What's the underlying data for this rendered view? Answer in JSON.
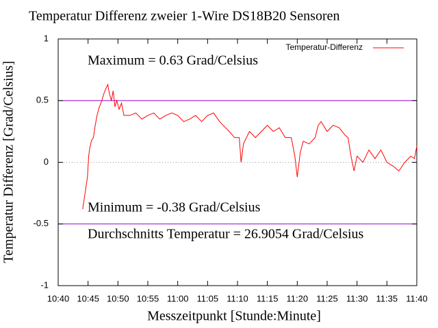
{
  "chart_data": {
    "type": "line",
    "title": "Temperatur Differenz zweier 1-Wire DS18B20 Sensoren",
    "x_label": "Messzeitpunkt [Stunde:Minute]",
    "y_label": "Temperatur Differenz [Grad/Celsius]",
    "annotations": [
      "Maximum = 0.63 Grad/Celsius",
      "Minimum = -0.38 Grad/Celsius",
      "Durchschnitts Temperatur = 26.9054 Grad/Celsius"
    ],
    "xlim": [
      640,
      700
    ],
    "xticks": [
      {
        "value": 640,
        "label": "10:40"
      },
      {
        "value": 645,
        "label": "10:45"
      },
      {
        "value": 650,
        "label": "10:50"
      },
      {
        "value": 655,
        "label": "10:55"
      },
      {
        "value": 660,
        "label": "11:00"
      },
      {
        "value": 665,
        "label": "11:05"
      },
      {
        "value": 670,
        "label": "11:10"
      },
      {
        "value": 675,
        "label": "11:15"
      },
      {
        "value": 680,
        "label": "11:20"
      },
      {
        "value": 685,
        "label": "11:25"
      },
      {
        "value": 690,
        "label": "11:30"
      },
      {
        "value": 695,
        "label": "11:35"
      },
      {
        "value": 700,
        "label": "11:40"
      }
    ],
    "ylim": [
      -1,
      1
    ],
    "yticks": [
      1,
      0.5,
      0,
      -0.5,
      -1
    ],
    "hlines": [
      0.5,
      -0.5
    ],
    "hline_color": "#9400d3",
    "zero_line": true,
    "legend": "upper right",
    "x": [
      644.1,
      644.5,
      644.9,
      645.1,
      645.3,
      645.6,
      645.9,
      646.2,
      646.5,
      646.9,
      647.3,
      647.6,
      648.0,
      648.3,
      648.6,
      648.9,
      649.2,
      649.5,
      649.8,
      650.2,
      650.6,
      651.0,
      652,
      653,
      654,
      655,
      656,
      657,
      658,
      659,
      660,
      661,
      662,
      663,
      664,
      665,
      666,
      667,
      668,
      669,
      669.5,
      670.3,
      670.6,
      671,
      672,
      673,
      674,
      675,
      676,
      677,
      678,
      679,
      679.6,
      680,
      680.5,
      681,
      682,
      683,
      683.5,
      684,
      685,
      686,
      687,
      688,
      688.5,
      689,
      689.5,
      690,
      691,
      692,
      693,
      694,
      695,
      696,
      697,
      698,
      699,
      699.6,
      700
    ],
    "series": [
      {
        "name": "Temperatur-Differenz",
        "color": "#ff0000",
        "values": [
          -0.38,
          -0.25,
          -0.12,
          0.05,
          0.12,
          0.18,
          0.2,
          0.3,
          0.38,
          0.45,
          0.5,
          0.55,
          0.6,
          0.63,
          0.55,
          0.5,
          0.58,
          0.45,
          0.5,
          0.43,
          0.48,
          0.38,
          0.38,
          0.4,
          0.35,
          0.38,
          0.4,
          0.35,
          0.38,
          0.4,
          0.38,
          0.33,
          0.35,
          0.38,
          0.33,
          0.38,
          0.4,
          0.33,
          0.28,
          0.23,
          0.2,
          0.2,
          0,
          0.15,
          0.25,
          0.2,
          0.25,
          0.3,
          0.25,
          0.28,
          0.2,
          0.2,
          0.05,
          -0.12,
          0.08,
          0.17,
          0.15,
          0.2,
          0.3,
          0.33,
          0.25,
          0.3,
          0.28,
          0.22,
          0.2,
          0.05,
          -0.07,
          0.05,
          0,
          0.1,
          0.03,
          0.1,
          0,
          -0.03,
          -0.07,
          0,
          0.05,
          0.03,
          0.13
        ]
      }
    ]
  }
}
